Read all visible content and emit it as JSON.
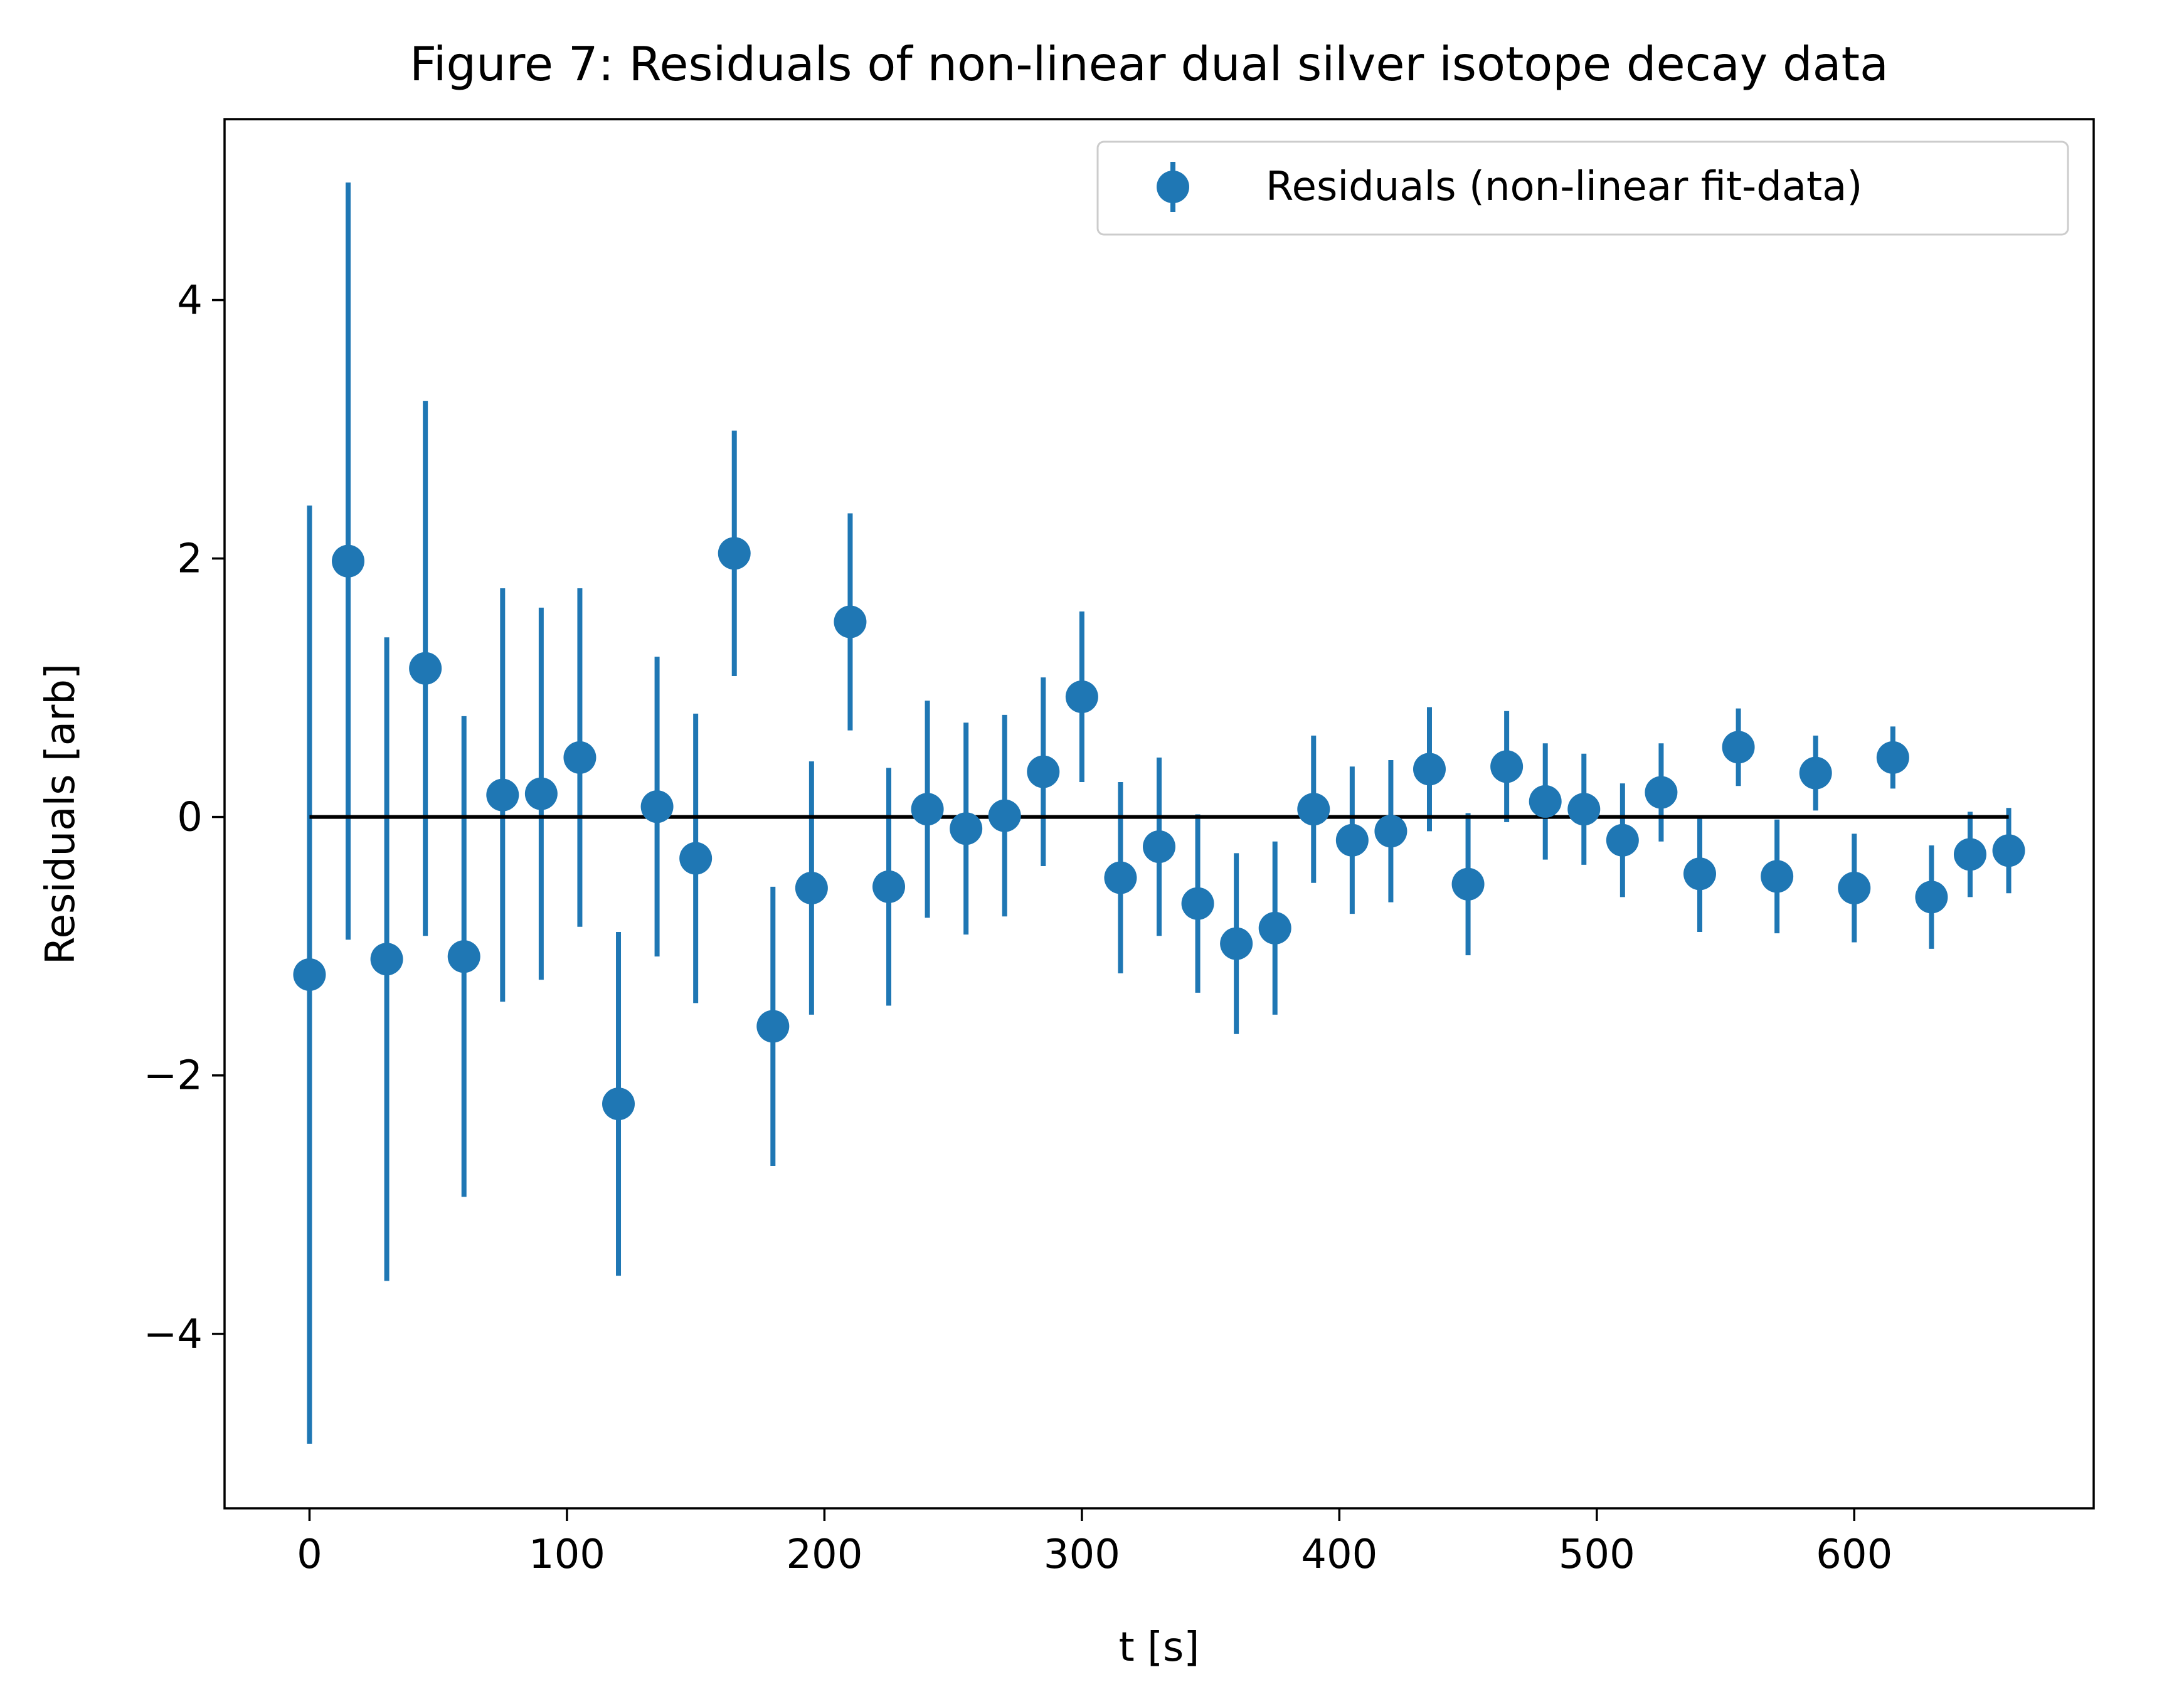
{
  "chart_data": {
    "type": "scatter",
    "title": "Figure 7: Residuals of non-linear dual silver isotope decay data",
    "xlabel": "t [s]",
    "ylabel": "Residuals [arb]",
    "xlim": [
      -33,
      693
    ],
    "ylim": [
      -5.35,
      5.4
    ],
    "xticks": [
      0,
      100,
      200,
      300,
      400,
      500,
      600
    ],
    "xtick_labels": [
      "0",
      "100",
      "200",
      "300",
      "400",
      "500",
      "600"
    ],
    "yticks": [
      -4,
      -2,
      0,
      2,
      4
    ],
    "ytick_labels": [
      "−4",
      "−2",
      "0",
      "2",
      "4"
    ],
    "grid": false,
    "legend_position": "top-right",
    "series": [
      {
        "name": "Residuals (non-linear fit-data)",
        "color": "#1f77b4",
        "marker": "circle-with-errorbars",
        "x": [
          0,
          15,
          30,
          45,
          60,
          75,
          90,
          105,
          120,
          135,
          150,
          165,
          180,
          195,
          210,
          225,
          240,
          255,
          270,
          285,
          300,
          315,
          330,
          345,
          360,
          375,
          390,
          405,
          420,
          435,
          450,
          465,
          480,
          495,
          510,
          525,
          540,
          555,
          570,
          585,
          600,
          615,
          630,
          645,
          660
        ],
        "y": [
          -1.22,
          1.98,
          -1.1,
          1.15,
          -1.08,
          0.17,
          0.18,
          0.46,
          -2.22,
          0.08,
          -0.32,
          2.04,
          -1.62,
          -0.55,
          1.51,
          -0.54,
          0.06,
          -0.09,
          0.01,
          0.35,
          0.93,
          -0.47,
          -0.23,
          -0.67,
          -0.98,
          -0.86,
          0.06,
          -0.18,
          -0.11,
          0.37,
          -0.52,
          0.39,
          0.12,
          0.06,
          -0.18,
          0.19,
          -0.44,
          0.54,
          -0.46,
          0.34,
          -0.55,
          0.46,
          -0.62,
          -0.29,
          -0.26
        ],
        "yerr": [
          3.63,
          2.93,
          2.49,
          2.07,
          1.86,
          1.6,
          1.44,
          1.31,
          1.33,
          1.16,
          1.12,
          0.95,
          1.08,
          0.98,
          0.84,
          0.92,
          0.84,
          0.82,
          0.78,
          0.73,
          0.66,
          0.74,
          0.69,
          0.69,
          0.7,
          0.67,
          0.57,
          0.57,
          0.55,
          0.48,
          0.55,
          0.43,
          0.45,
          0.43,
          0.44,
          0.38,
          0.45,
          0.3,
          0.44,
          0.29,
          0.42,
          0.24,
          0.4,
          0.33,
          0.33
        ]
      },
      {
        "name": "",
        "type": "line",
        "color": "#000000",
        "x": [
          0,
          660
        ],
        "y": [
          0,
          0
        ]
      }
    ]
  }
}
